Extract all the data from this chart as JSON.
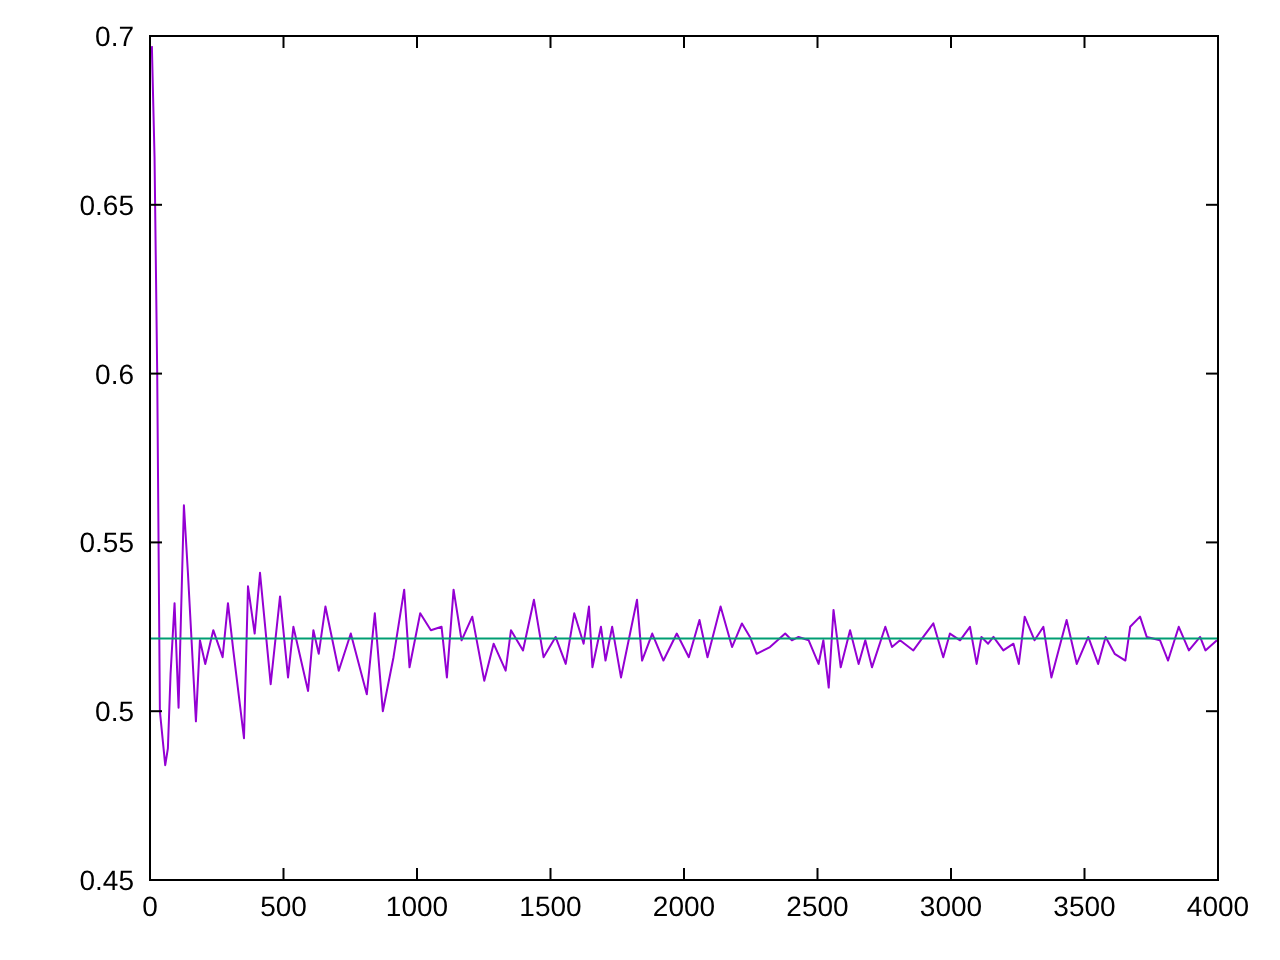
{
  "chart_data": {
    "type": "line",
    "x": [
      7,
      17,
      27,
      37,
      57,
      67,
      77,
      92,
      107,
      127,
      142,
      172,
      187,
      207,
      237,
      272,
      292,
      312,
      352,
      367,
      392,
      412,
      452,
      487,
      517,
      537,
      592,
      612,
      632,
      657,
      707,
      752,
      812,
      842,
      872,
      912,
      952,
      972,
      1012,
      1052,
      1092,
      1112,
      1137,
      1167,
      1207,
      1252,
      1287,
      1332,
      1352,
      1397,
      1438,
      1474,
      1519,
      1557,
      1589,
      1624,
      1644,
      1657,
      1689,
      1706,
      1731,
      1764,
      1824,
      1843,
      1881,
      1923,
      1973,
      2018,
      2058,
      2088,
      2137,
      2180,
      2217,
      2247,
      2272,
      2322,
      2379,
      2404,
      2429,
      2467,
      2504,
      2522,
      2542,
      2560,
      2587,
      2622,
      2654,
      2679,
      2704,
      2754,
      2779,
      2809,
      2859,
      2896,
      2934,
      2971,
      2996,
      3034,
      3071,
      3096,
      3114,
      3139,
      3159,
      3196,
      3234,
      3254,
      3276,
      3313,
      3346,
      3376,
      3433,
      3471,
      3514,
      3551,
      3579,
      3613,
      3653,
      3671,
      3708,
      3733,
      3783,
      3813,
      3853,
      3891,
      3933,
      3953,
      3996
    ],
    "series": [
      {
        "color": "#9400d3",
        "values": [
          0.697,
          0.664,
          0.6,
          0.5,
          0.484,
          0.489,
          0.511,
          0.532,
          0.501,
          0.561,
          0.541,
          0.497,
          0.521,
          0.514,
          0.524,
          0.516,
          0.532,
          0.518,
          0.492,
          0.537,
          0.523,
          0.541,
          0.508,
          0.534,
          0.51,
          0.525,
          0.506,
          0.524,
          0.517,
          0.531,
          0.512,
          0.523,
          0.505,
          0.529,
          0.5,
          0.516,
          0.536,
          0.513,
          0.529,
          0.524,
          0.525,
          0.51,
          0.536,
          0.521,
          0.528,
          0.509,
          0.52,
          0.512,
          0.524,
          0.518,
          0.533,
          0.516,
          0.522,
          0.514,
          0.529,
          0.52,
          0.531,
          0.513,
          0.525,
          0.515,
          0.525,
          0.51,
          0.533,
          0.515,
          0.523,
          0.515,
          0.523,
          0.516,
          0.527,
          0.516,
          0.531,
          0.519,
          0.526,
          0.522,
          0.517,
          0.519,
          0.523,
          0.521,
          0.522,
          0.521,
          0.514,
          0.521,
          0.507,
          0.53,
          0.513,
          0.524,
          0.514,
          0.521,
          0.513,
          0.525,
          0.519,
          0.521,
          0.518,
          0.522,
          0.526,
          0.516,
          0.523,
          0.521,
          0.525,
          0.514,
          0.522,
          0.52,
          0.522,
          0.518,
          0.52,
          0.514,
          0.528,
          0.521,
          0.525,
          0.51,
          0.527,
          0.514,
          0.522,
          0.514,
          0.522,
          0.517,
          0.515,
          0.525,
          0.528,
          0.522,
          0.521,
          0.515,
          0.525,
          0.518,
          0.522,
          0.518,
          0.521
        ]
      }
    ],
    "ref_lines": [
      {
        "axis": "y",
        "value": 0.5215,
        "color": "#009e73"
      }
    ],
    "xlim": [
      0,
      4000
    ],
    "xticks": [
      0,
      500,
      1000,
      1500,
      2000,
      2500,
      3000,
      3500,
      4000
    ],
    "ylim": [
      0.45,
      0.7
    ],
    "yticks": [
      0.45,
      0.5,
      0.55,
      0.6,
      0.65,
      0.7
    ],
    "grid": false,
    "marker": "none",
    "line_style": "solid"
  }
}
